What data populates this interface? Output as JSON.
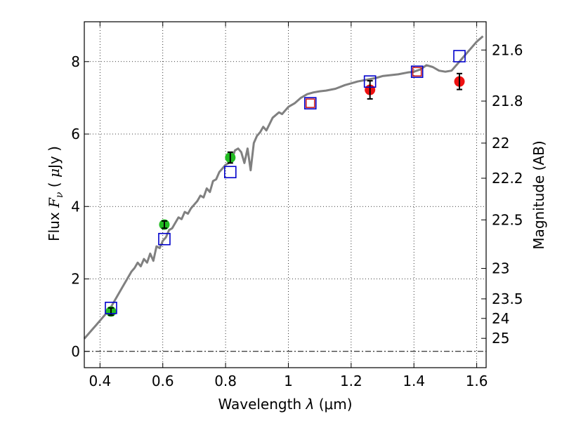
{
  "chart_data": {
    "type": "scatter",
    "xlabel_main": "Wavelength",
    "xlabel_lambda": "λ",
    "xlabel_unit": " (μm)",
    "ylabel_main": "Flux",
    "ylabel_symbol": "F",
    "ylabel_sub": "ν",
    "ylabel_unit_open": "(",
    "ylabel_unit_mu": "μ",
    "ylabel_unit_rest": "Jy )",
    "y2label": "Magnitude (AB)",
    "xlim": [
      0.35,
      1.63
    ],
    "ylim": [
      -0.45,
      9.1
    ],
    "x_ticks": [
      0.4,
      0.6,
      0.8,
      1.0,
      1.2,
      1.4,
      1.6
    ],
    "x_tick_labels": [
      "0.4",
      "0.6",
      "0.8",
      "1",
      "1.2",
      "1.4",
      "1.6"
    ],
    "y_ticks": [
      0,
      2,
      4,
      6,
      8
    ],
    "y_tick_labels": [
      "0",
      "2",
      "4",
      "6",
      "8"
    ],
    "mag_ticks": [
      {
        "label": "21.6",
        "flux": 8.32
      },
      {
        "label": "21.8",
        "flux": 6.91
      },
      {
        "label": "22",
        "flux": 5.75
      },
      {
        "label": "22.2",
        "flux": 4.78
      },
      {
        "label": "22.5",
        "flux": 3.63
      },
      {
        "label": "23",
        "flux": 2.29
      },
      {
        "label": "23.5",
        "flux": 1.45
      },
      {
        "label": "24",
        "flux": 0.91
      },
      {
        "label": "25",
        "flux": 0.36
      }
    ],
    "grid": true,
    "colors": {
      "model": "#808080",
      "green": "#22bb22",
      "red": "#ee1111",
      "blue_square": "#0000cc",
      "red_square": "#cc2222",
      "errorbar": "#000000"
    },
    "model_spectrum": {
      "name": "model SED",
      "x": [
        0.35,
        0.37,
        0.39,
        0.41,
        0.43,
        0.45,
        0.47,
        0.49,
        0.5,
        0.51,
        0.52,
        0.53,
        0.54,
        0.55,
        0.56,
        0.57,
        0.58,
        0.59,
        0.6,
        0.61,
        0.62,
        0.63,
        0.64,
        0.65,
        0.66,
        0.67,
        0.68,
        0.69,
        0.7,
        0.71,
        0.72,
        0.73,
        0.74,
        0.75,
        0.76,
        0.77,
        0.78,
        0.79,
        0.8,
        0.81,
        0.82,
        0.83,
        0.84,
        0.85,
        0.86,
        0.87,
        0.88,
        0.89,
        0.9,
        0.91,
        0.92,
        0.93,
        0.95,
        0.97,
        0.98,
        1.0,
        1.02,
        1.04,
        1.06,
        1.08,
        1.1,
        1.12,
        1.15,
        1.18,
        1.2,
        1.22,
        1.25,
        1.28,
        1.3,
        1.32,
        1.35,
        1.38,
        1.4,
        1.42,
        1.44,
        1.46,
        1.48,
        1.5,
        1.52,
        1.54,
        1.56,
        1.58,
        1.6,
        1.62
      ],
      "y": [
        0.35,
        0.55,
        0.75,
        0.95,
        1.15,
        1.45,
        1.75,
        2.05,
        2.2,
        2.3,
        2.45,
        2.35,
        2.55,
        2.45,
        2.7,
        2.5,
        2.9,
        2.85,
        3.05,
        3.15,
        3.35,
        3.4,
        3.55,
        3.7,
        3.65,
        3.85,
        3.8,
        3.95,
        4.05,
        4.15,
        4.3,
        4.25,
        4.5,
        4.4,
        4.7,
        4.75,
        4.95,
        5.05,
        5.15,
        5.2,
        5.3,
        5.55,
        5.6,
        5.5,
        5.2,
        5.6,
        5.0,
        5.75,
        5.95,
        6.05,
        6.2,
        6.1,
        6.45,
        6.6,
        6.55,
        6.75,
        6.85,
        7.0,
        7.1,
        7.15,
        7.18,
        7.2,
        7.25,
        7.35,
        7.4,
        7.45,
        7.5,
        7.55,
        7.6,
        7.62,
        7.65,
        7.7,
        7.72,
        7.78,
        7.9,
        7.85,
        7.75,
        7.72,
        7.75,
        7.95,
        8.15,
        8.35,
        8.55,
        8.7
      ]
    },
    "series": [
      {
        "name": "green points",
        "marker": "circle",
        "points": [
          {
            "x": 0.435,
            "y": 1.1,
            "err": 0.1
          },
          {
            "x": 0.605,
            "y": 3.5,
            "err": 0.1
          },
          {
            "x": 0.815,
            "y": 5.35,
            "err": 0.15
          }
        ]
      },
      {
        "name": "red points",
        "marker": "circle",
        "points": [
          {
            "x": 1.26,
            "y": 7.22,
            "err": 0.25
          },
          {
            "x": 1.545,
            "y": 7.45,
            "err": 0.22
          }
        ]
      },
      {
        "name": "blue squares",
        "marker": "square",
        "points": [
          {
            "x": 0.435,
            "y": 1.2
          },
          {
            "x": 0.605,
            "y": 3.1
          },
          {
            "x": 0.815,
            "y": 4.95
          },
          {
            "x": 1.07,
            "y": 6.85
          },
          {
            "x": 1.26,
            "y": 7.45
          },
          {
            "x": 1.41,
            "y": 7.72
          },
          {
            "x": 1.545,
            "y": 8.15
          }
        ]
      },
      {
        "name": "red squares",
        "marker": "square",
        "points": [
          {
            "x": 1.07,
            "y": 6.85
          },
          {
            "x": 1.41,
            "y": 7.72
          }
        ]
      }
    ]
  }
}
